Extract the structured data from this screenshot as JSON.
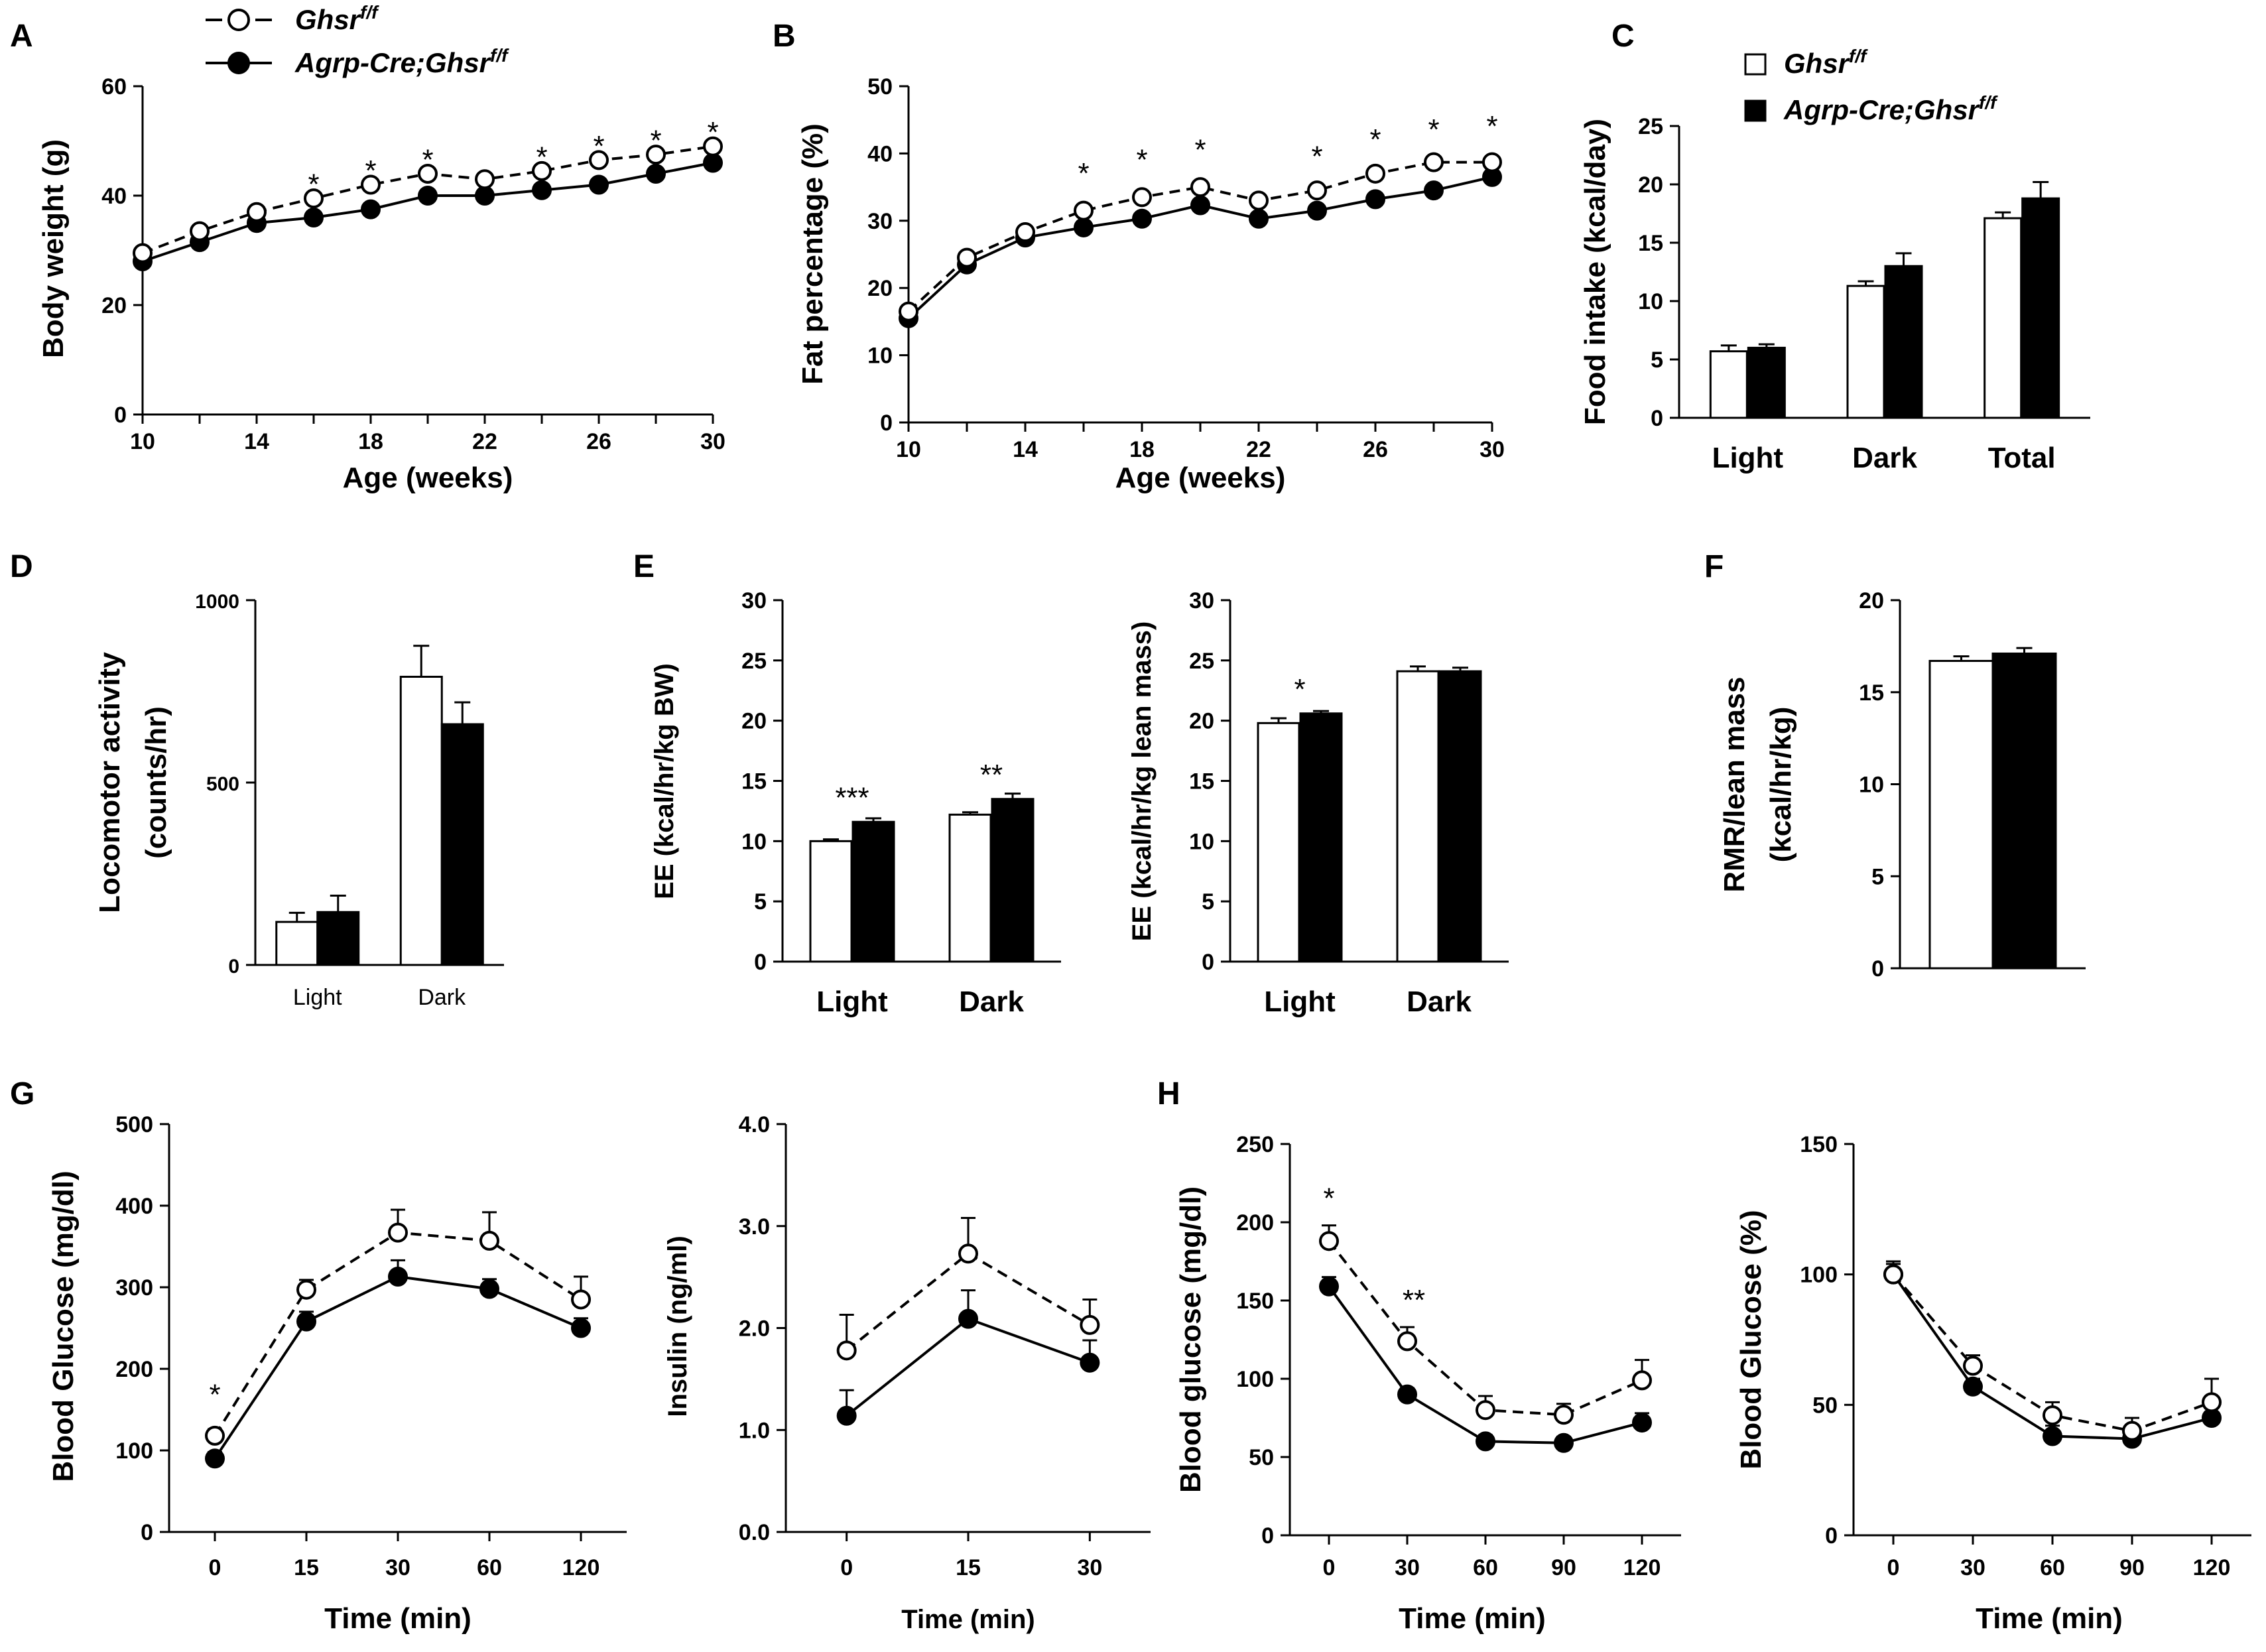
{
  "figure": {
    "legend_top": {
      "ctrl_label": "Ghsr",
      "ctrl_sup": "f/f",
      "ko_label": "Agrp-Cre;Ghsr",
      "ko_sup": "f/f"
    },
    "legend_c": {
      "ctrl_label": "Ghsr",
      "ctrl_sup": "f/f",
      "ko_label": "Agrp-Cre;Ghsr",
      "ko_sup": "f/f"
    }
  },
  "chart_data": [
    {
      "id": "A",
      "panel_letter": "A",
      "type": "line",
      "title": "",
      "xlabel": "Age (weeks)",
      "ylabel": "Body weight (g)",
      "x": [
        10,
        12,
        14,
        16,
        18,
        20,
        22,
        24,
        26,
        28,
        30
      ],
      "xticks": [
        10,
        14,
        18,
        22,
        26,
        30
      ],
      "ylim": [
        0,
        60
      ],
      "yticks": [
        0,
        20,
        40,
        60
      ],
      "series": [
        {
          "name": "Ghsr f/f",
          "style": "open-dashed",
          "values": [
            29.5,
            33.5,
            37,
            39.5,
            42,
            44,
            43,
            44.5,
            46.5,
            47.5,
            49
          ]
        },
        {
          "name": "Agrp-Cre;Ghsr f/f",
          "style": "filled-solid",
          "values": [
            28,
            31.5,
            35,
            36,
            37.5,
            40,
            40,
            41,
            42,
            44,
            46
          ]
        }
      ],
      "annotations": [
        {
          "x": 16,
          "y": 42,
          "text": "*"
        },
        {
          "x": 18,
          "y": 44.5,
          "text": "*"
        },
        {
          "x": 20,
          "y": 46.5,
          "text": "*"
        },
        {
          "x": 24,
          "y": 47,
          "text": "*"
        },
        {
          "x": 26,
          "y": 49,
          "text": "*"
        },
        {
          "x": 28,
          "y": 50,
          "text": "*"
        },
        {
          "x": 30,
          "y": 51.5,
          "text": "*"
        }
      ]
    },
    {
      "id": "B",
      "panel_letter": "B",
      "type": "line",
      "title": "",
      "xlabel": "Age (weeks)",
      "ylabel": "Fat percentage (%)",
      "x": [
        10,
        12,
        14,
        16,
        18,
        20,
        22,
        24,
        26,
        28,
        30
      ],
      "xticks": [
        10,
        14,
        18,
        22,
        26,
        30
      ],
      "ylim": [
        0,
        50
      ],
      "yticks": [
        0,
        10,
        20,
        30,
        40,
        50
      ],
      "series": [
        {
          "name": "Ghsr f/f",
          "style": "open-dashed",
          "values": [
            16.5,
            24.5,
            28.3,
            31.5,
            33.5,
            35,
            33,
            34.5,
            37,
            38.7,
            38.7
          ]
        },
        {
          "name": "Agrp-Cre;Ghsr f/f",
          "style": "filled-solid",
          "values": [
            15.5,
            23.5,
            27.5,
            29,
            30.3,
            32.3,
            30.3,
            31.5,
            33.2,
            34.5,
            36.5
          ]
        }
      ],
      "annotations": [
        {
          "x": 16,
          "y": 37,
          "text": "*"
        },
        {
          "x": 18,
          "y": 39,
          "text": "*"
        },
        {
          "x": 20,
          "y": 40.5,
          "text": "*"
        },
        {
          "x": 24,
          "y": 39.5,
          "text": "*"
        },
        {
          "x": 26,
          "y": 42,
          "text": "*"
        },
        {
          "x": 28,
          "y": 43.5,
          "text": "*"
        },
        {
          "x": 30,
          "y": 44,
          "text": "*"
        }
      ]
    },
    {
      "id": "C",
      "panel_letter": "C",
      "type": "bar",
      "title": "",
      "xlabel": "",
      "ylabel": "Food intake (kcal/day)",
      "categories": [
        "Light",
        "Dark",
        "Total"
      ],
      "ylim": [
        0,
        25
      ],
      "yticks": [
        0,
        5,
        10,
        15,
        20,
        25
      ],
      "series": [
        {
          "name": "Ghsr f/f",
          "values": [
            5.7,
            11.3,
            17.1
          ]
        },
        {
          "name": "Agrp-Cre;Ghsr f/f",
          "values": [
            6.0,
            13.0,
            18.8
          ]
        }
      ],
      "annotations": []
    },
    {
      "id": "D",
      "panel_letter": "D",
      "type": "bar",
      "title": "",
      "xlabel": "",
      "ylabel": "Locomotor activity",
      "ylabel2": "(counts/hr)",
      "categories": [
        "Light",
        "Dark"
      ],
      "ylim": [
        0,
        1000
      ],
      "yticks": [
        0,
        500,
        1000
      ],
      "series": [
        {
          "name": "Ghsr f/f",
          "values": [
            118,
            790
          ]
        },
        {
          "name": "Agrp-Cre;Ghsr f/f",
          "values": [
            145,
            660
          ]
        }
      ],
      "annotations": []
    },
    {
      "id": "E1",
      "panel_letter": "E",
      "type": "bar",
      "title": "",
      "xlabel": "",
      "ylabel": "EE (kcal/hr/kg BW)",
      "categories": [
        "Light",
        "Dark"
      ],
      "ylim": [
        0,
        30
      ],
      "yticks": [
        0,
        5,
        10,
        15,
        20,
        25,
        30
      ],
      "series": [
        {
          "name": "Ghsr f/f",
          "values": [
            10.0,
            12.2
          ]
        },
        {
          "name": "Agrp-Cre;Ghsr f/f",
          "values": [
            11.6,
            13.5
          ]
        }
      ],
      "annotations": [
        {
          "category": "Light",
          "text": "***"
        },
        {
          "category": "Dark",
          "text": "**"
        }
      ]
    },
    {
      "id": "E2",
      "panel_letter": "",
      "type": "bar",
      "title": "",
      "xlabel": "",
      "ylabel": "EE (kcal/hr/kg lean mass)",
      "categories": [
        "Light",
        "Dark"
      ],
      "ylim": [
        0,
        30
      ],
      "yticks": [
        0,
        5,
        10,
        15,
        20,
        25,
        30
      ],
      "series": [
        {
          "name": "Ghsr f/f",
          "values": [
            19.8,
            24.1
          ]
        },
        {
          "name": "Agrp-Cre;Ghsr f/f",
          "values": [
            20.6,
            24.1
          ]
        }
      ],
      "annotations": [
        {
          "category": "Light",
          "text": "*"
        }
      ]
    },
    {
      "id": "F",
      "panel_letter": "F",
      "type": "bar",
      "title": "",
      "xlabel": "",
      "ylabel": "RMR/lean mass",
      "ylabel2": "(kcal/hr/kg)",
      "categories": [
        ""
      ],
      "ylim": [
        0,
        20
      ],
      "yticks": [
        0,
        5,
        10,
        15,
        20
      ],
      "series": [
        {
          "name": "Ghsr f/f",
          "values": [
            16.7
          ]
        },
        {
          "name": "Agrp-Cre;Ghsr f/f",
          "values": [
            17.1
          ]
        }
      ],
      "annotations": []
    },
    {
      "id": "G1",
      "panel_letter": "G",
      "type": "line",
      "title": "",
      "xlabel": "Time (min)",
      "ylabel": "Blood Glucose (mg/dl)",
      "categories": [
        "0",
        "15",
        "30",
        "60",
        "120"
      ],
      "ylim": [
        0,
        500
      ],
      "yticks": [
        0,
        100,
        200,
        300,
        400,
        500
      ],
      "series": [
        {
          "name": "Ghsr f/f",
          "style": "open-dashed",
          "values": [
            118,
            297,
            367,
            357,
            285
          ]
        },
        {
          "name": "Agrp-Cre;Ghsr f/f",
          "style": "filled-solid",
          "values": [
            90,
            258,
            313,
            298,
            250
          ]
        }
      ],
      "annotations": [
        {
          "x": "0",
          "y": 168,
          "text": "*"
        }
      ]
    },
    {
      "id": "G2",
      "panel_letter": "",
      "type": "line",
      "title": "",
      "xlabel": "Time (min)",
      "ylabel": "Insulin (ng/ml)",
      "categories": [
        "0",
        "15",
        "30"
      ],
      "ylim": [
        0,
        4
      ],
      "yticks": [
        0,
        1,
        2,
        3,
        4
      ],
      "series": [
        {
          "name": "Ghsr f/f",
          "style": "open-dashed",
          "values": [
            1.78,
            2.73,
            2.03
          ]
        },
        {
          "name": "Agrp-Cre;Ghsr f/f",
          "style": "filled-solid",
          "values": [
            1.14,
            2.09,
            1.66
          ]
        }
      ],
      "annotations": []
    },
    {
      "id": "H1",
      "panel_letter": "H",
      "type": "line",
      "title": "",
      "xlabel": "Time (min)",
      "ylabel": "Blood glucose (mg/dl)",
      "categories": [
        "0",
        "30",
        "60",
        "90",
        "120"
      ],
      "ylim": [
        0,
        250
      ],
      "yticks": [
        0,
        50,
        100,
        150,
        200,
        250
      ],
      "series": [
        {
          "name": "Ghsr f/f",
          "style": "open-dashed",
          "values": [
            188,
            124,
            80,
            77,
            99
          ]
        },
        {
          "name": "Agrp-Cre;Ghsr f/f",
          "style": "filled-solid",
          "values": [
            159,
            90,
            60,
            59,
            72
          ]
        }
      ],
      "annotations": [
        {
          "x": "0",
          "y": 215,
          "text": "*"
        },
        {
          "x": "30",
          "y": 150,
          "text": "**"
        }
      ]
    },
    {
      "id": "H2",
      "panel_letter": "",
      "type": "line",
      "title": "",
      "xlabel": "Time (min)",
      "ylabel": "Blood Glucose (%)",
      "categories": [
        "0",
        "30",
        "60",
        "90",
        "120"
      ],
      "ylim": [
        0,
        150
      ],
      "yticks": [
        0,
        50,
        100,
        150
      ],
      "series": [
        {
          "name": "Ghsr f/f",
          "style": "open-dashed",
          "values": [
            100,
            65,
            46,
            40,
            51
          ]
        },
        {
          "name": "Agrp-Cre;Ghsr f/f",
          "style": "filled-solid",
          "values": [
            100,
            57,
            38,
            37,
            45
          ]
        }
      ],
      "annotations": []
    }
  ]
}
